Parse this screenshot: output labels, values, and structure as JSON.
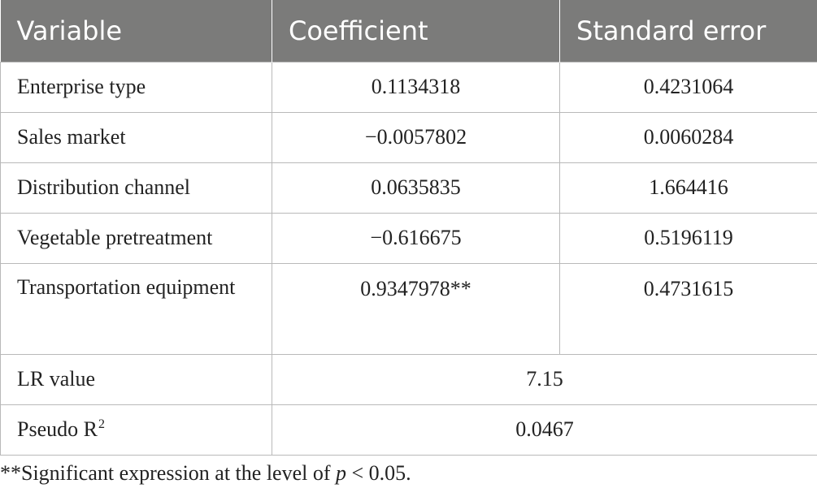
{
  "table": {
    "headers": [
      "Variable",
      "Coefficient",
      "Standard error"
    ],
    "rows": [
      {
        "variable": "Enterprise type",
        "coefficient": "0.1134318",
        "std_error": "0.4231064"
      },
      {
        "variable": "Sales market",
        "coefficient": "−0.0057802",
        "std_error": "0.0060284"
      },
      {
        "variable": "Distribution channel",
        "coefficient": "0.0635835",
        "std_error": "1.664416"
      },
      {
        "variable": "Vegetable pretreatment",
        "coefficient": "−0.616675",
        "std_error": "0.5196119"
      },
      {
        "variable": "Transportation equipment",
        "coefficient": "0.9347978**",
        "std_error": "0.4731615"
      }
    ],
    "summary": [
      {
        "label": "LR value",
        "value": "7.15"
      },
      {
        "label": "Pseudo R",
        "label_sup": "2",
        "value": "0.0467"
      }
    ],
    "header_bg": "#7b7b7a"
  },
  "note": {
    "prefix": "**Significant expression at the level of ",
    "italic": "p",
    "suffix": " < 0.05."
  }
}
